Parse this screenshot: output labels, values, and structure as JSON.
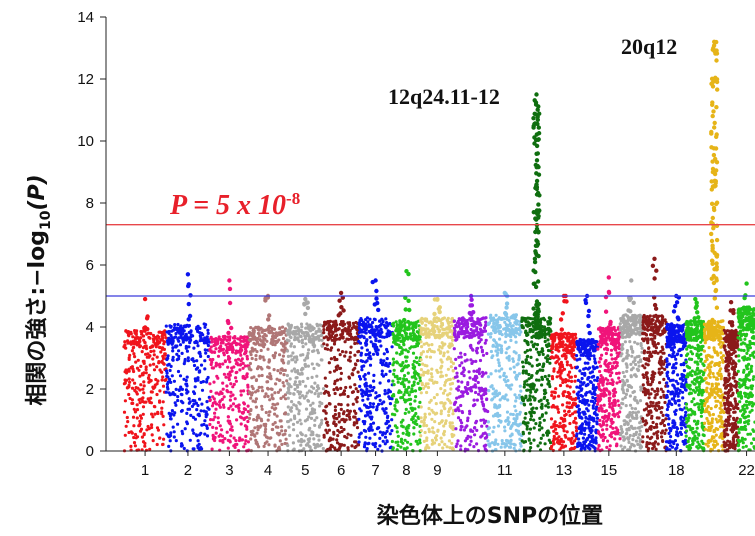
{
  "chart_data": {
    "type": "scatter",
    "subtype": "manhattan",
    "xlabel": "染色体上のSNPの位置",
    "ylabel_main": "相関の強さ:−log",
    "ylabel_sub": "10",
    "ylabel_tail": "(P)",
    "ylim": [
      0,
      14
    ],
    "yticks": [
      "0",
      "2",
      "4",
      "6",
      "8",
      "10",
      "12",
      "14"
    ],
    "xticks": [
      "1",
      "2",
      "3",
      "4",
      "5",
      "6",
      "7",
      "8",
      "9",
      "11",
      "13",
      "15",
      "18",
      "22"
    ],
    "threshold_label": "P = 5 x 10",
    "threshold_exp": "-8",
    "genome_wide_threshold": 7.3,
    "suggestive_threshold": 5.0,
    "threshold_colors": {
      "genome_wide": "#e8474a",
      "suggestive": "#3b3bdc"
    },
    "annotations": [
      {
        "text": "12q24.11-12",
        "chromosome": 12,
        "peak": 11.5
      },
      {
        "text": "20q12",
        "chromosome": 20,
        "peak": 13.2
      }
    ],
    "chromosomes": [
      {
        "chr": 1,
        "color": "#f0141c",
        "base": 3.9,
        "max": 4.9
      },
      {
        "chr": 2,
        "color": "#0a14ee",
        "base": 4.1,
        "max": 5.7
      },
      {
        "chr": 3,
        "color": "#f0147a",
        "base": 3.7,
        "max": 5.5
      },
      {
        "chr": 4,
        "color": "#b07676",
        "base": 4.0,
        "max": 5.0
      },
      {
        "chr": 5,
        "color": "#a8a8a8",
        "base": 4.1,
        "max": 4.9
      },
      {
        "chr": 6,
        "color": "#8b1a1a",
        "base": 4.2,
        "max": 5.1
      },
      {
        "chr": 7,
        "color": "#0a14ee",
        "base": 4.3,
        "max": 5.5
      },
      {
        "chr": 8,
        "color": "#22c41c",
        "base": 4.2,
        "max": 5.8
      },
      {
        "chr": 9,
        "color": "#e6d27a",
        "base": 4.3,
        "max": 4.9
      },
      {
        "chr": 10,
        "color": "#9a1be0",
        "base": 4.3,
        "max": 5.0
      },
      {
        "chr": 11,
        "color": "#87c6ea",
        "base": 4.4,
        "max": 5.1
      },
      {
        "chr": 12,
        "color": "#0f6e0f",
        "base": 4.3,
        "max": 11.5
      },
      {
        "chr": 13,
        "color": "#f0141c",
        "base": 3.8,
        "max": 5.0
      },
      {
        "chr": 14,
        "color": "#0a14ee",
        "base": 3.6,
        "max": 5.0
      },
      {
        "chr": 15,
        "color": "#f0147a",
        "base": 4.0,
        "max": 5.6
      },
      {
        "chr": 16,
        "color": "#a8a8a8",
        "base": 4.4,
        "max": 5.5
      },
      {
        "chr": 17,
        "color": "#8b1a1a",
        "base": 4.4,
        "max": 6.2
      },
      {
        "chr": 18,
        "color": "#0a14ee",
        "base": 4.1,
        "max": 5.0
      },
      {
        "chr": 19,
        "color": "#22c41c",
        "base": 4.2,
        "max": 4.9
      },
      {
        "chr": 20,
        "color": "#e6b418",
        "base": 4.2,
        "max": 13.2
      },
      {
        "chr": 21,
        "color": "#8b1a1a",
        "base": 3.9,
        "max": 4.8
      },
      {
        "chr": 22,
        "color": "#22c41c",
        "base": 4.6,
        "max": 5.4
      }
    ]
  }
}
